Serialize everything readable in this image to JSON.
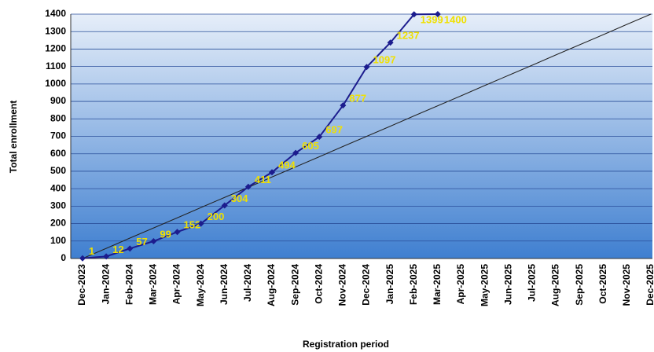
{
  "chart_data": {
    "type": "line",
    "y_label": "Total enrollment",
    "x_label": "Registration period",
    "categories": [
      "Dec-2023",
      "Jan-2024",
      "Feb-2024",
      "Mar-2024",
      "Apr-2024",
      "May-2024",
      "Jun-2024",
      "Jul-2024",
      "Aug-2024",
      "Sep-2024",
      "Oct-2024",
      "Nov-2024",
      "Dec-2024",
      "Jan-2025",
      "Feb-2025",
      "Mar-2025",
      "Apr-2025",
      "May-2025",
      "Jun-2025",
      "Jul-2025",
      "Aug-2025",
      "Sep-2025",
      "Oct-2025",
      "Nov-2025",
      "Dec-2025"
    ],
    "series": [
      {
        "color": "#1c1c8e",
        "values": [
          1,
          12,
          57,
          99,
          152,
          200,
          304,
          411,
          494,
          605,
          697,
          877,
          1097,
          1237,
          1399,
          1400,
          null,
          null,
          null,
          null,
          null,
          null,
          null,
          null,
          null
        ]
      },
      {
        "color": "#222222",
        "values": [
          0,
          58,
          117,
          175,
          233,
          292,
          350,
          408,
          467,
          525,
          583,
          642,
          700,
          758,
          817,
          875,
          933,
          992,
          1050,
          1108,
          1167,
          1225,
          1283,
          1342,
          1400
        ]
      }
    ],
    "ylim": [
      0,
      1400
    ],
    "yticks": [
      0,
      100,
      200,
      300,
      400,
      500,
      600,
      700,
      800,
      900,
      1000,
      1100,
      1200,
      1300,
      1400
    ],
    "grid": true
  }
}
